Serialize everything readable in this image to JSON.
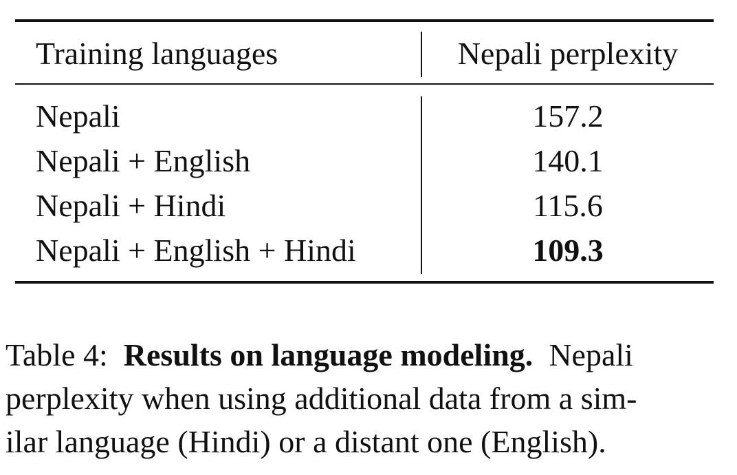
{
  "table": {
    "headers": {
      "training_languages": "Training languages",
      "nepali_perplexity": "Nepali perplexity"
    },
    "rows": [
      {
        "languages": "Nepali",
        "perplexity": "157.2",
        "best": false
      },
      {
        "languages": "Nepali + English",
        "perplexity": "140.1",
        "best": false
      },
      {
        "languages": "Nepali + Hindi",
        "perplexity": "115.6",
        "best": false
      },
      {
        "languages": "Nepali + English + Hindi",
        "perplexity": "109.3",
        "best": true
      }
    ]
  },
  "caption": {
    "label": "Table 4:",
    "title": "Results on language modeling.",
    "lines": [
      "Nepali",
      "perplexity when using additional data from a sim-",
      "ilar language (Hindi) or a distant one (English)."
    ]
  }
}
